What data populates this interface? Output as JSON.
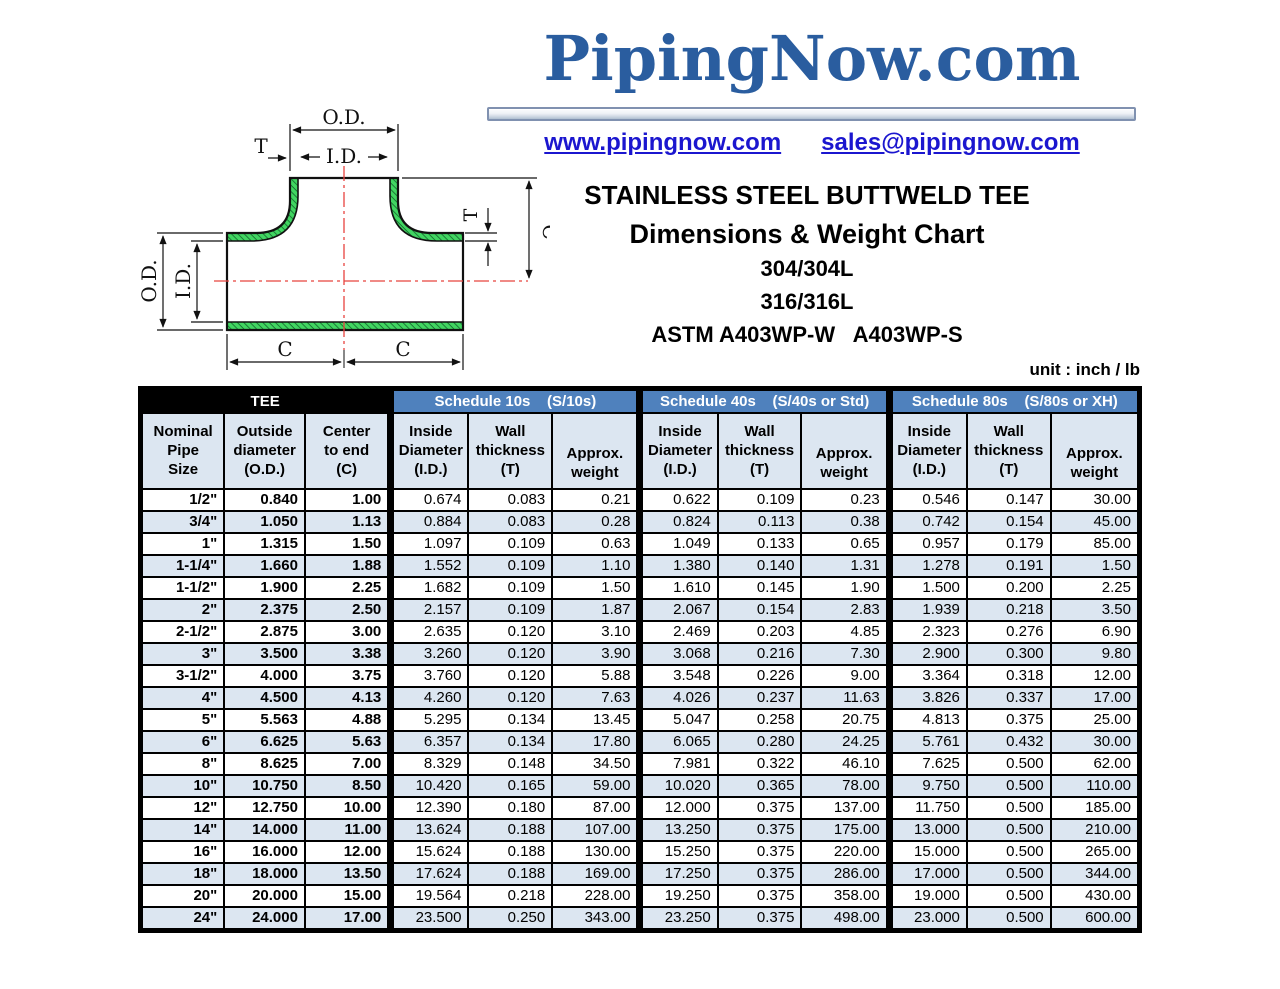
{
  "header": {
    "logo": "PipingNow.com",
    "website": "www.pipingnow.com",
    "email": "sales@pipingnow.com"
  },
  "titles": {
    "main": "STAINLESS STEEL BUTTWELD TEE",
    "sub": "Dimensions & Weight Chart",
    "grade1": "304/304L",
    "grade2": "316/316L",
    "astm": "ASTM A403WP-W   A403WP-S",
    "unit": "unit : inch / lb"
  },
  "diagram": {
    "od_label": "O.D.",
    "id_label": "I.D.",
    "t_label": "T",
    "c_label": "C"
  },
  "colors": {
    "schedule_header_bg": "#4f81bd",
    "shaded_row_bg": "#dce6f1",
    "logo_blue": "#2a5d9f",
    "link_blue": "#1b16cf",
    "hatch_green": "#41d561",
    "centerline_red": "#e8433f"
  },
  "table": {
    "groups": [
      {
        "label": "TEE"
      },
      {
        "label": "Schedule 10s    (S/10s)"
      },
      {
        "label": "Schedule 40s    (S/40s or Std)"
      },
      {
        "label": "Schedule 80s    (S/80s or XH)"
      }
    ],
    "columns": [
      "Nominal\nPipe\nSize",
      "Outside\ndiameter\n(O.D.)",
      "Center\nto end\n(C)",
      "Inside\nDiameter\n(I.D.)",
      "Wall\nthickness\n(T)",
      "Approx.\nweight",
      "Inside\nDiameter\n(I.D.)",
      "Wall\nthickness\n(T)",
      "Approx.\nweight",
      "Inside\nDiameter\n(I.D.)",
      "Wall\nthickness\n(T)",
      "Approx.\nweight"
    ],
    "rows": [
      [
        "1/2\"",
        "0.840",
        "1.00",
        "0.674",
        "0.083",
        "0.21",
        "0.622",
        "0.109",
        "0.23",
        "0.546",
        "0.147",
        "30.00"
      ],
      [
        "3/4\"",
        "1.050",
        "1.13",
        "0.884",
        "0.083",
        "0.28",
        "0.824",
        "0.113",
        "0.38",
        "0.742",
        "0.154",
        "45.00"
      ],
      [
        "1\"",
        "1.315",
        "1.50",
        "1.097",
        "0.109",
        "0.63",
        "1.049",
        "0.133",
        "0.65",
        "0.957",
        "0.179",
        "85.00"
      ],
      [
        "1-1/4\"",
        "1.660",
        "1.88",
        "1.552",
        "0.109",
        "1.10",
        "1.380",
        "0.140",
        "1.31",
        "1.278",
        "0.191",
        "1.50"
      ],
      [
        "1-1/2\"",
        "1.900",
        "2.25",
        "1.682",
        "0.109",
        "1.50",
        "1.610",
        "0.145",
        "1.90",
        "1.500",
        "0.200",
        "2.25"
      ],
      [
        "2\"",
        "2.375",
        "2.50",
        "2.157",
        "0.109",
        "1.87",
        "2.067",
        "0.154",
        "2.83",
        "1.939",
        "0.218",
        "3.50"
      ],
      [
        "2-1/2\"",
        "2.875",
        "3.00",
        "2.635",
        "0.120",
        "3.10",
        "2.469",
        "0.203",
        "4.85",
        "2.323",
        "0.276",
        "6.90"
      ],
      [
        "3\"",
        "3.500",
        "3.38",
        "3.260",
        "0.120",
        "3.90",
        "3.068",
        "0.216",
        "7.30",
        "2.900",
        "0.300",
        "9.80"
      ],
      [
        "3-1/2\"",
        "4.000",
        "3.75",
        "3.760",
        "0.120",
        "5.88",
        "3.548",
        "0.226",
        "9.00",
        "3.364",
        "0.318",
        "12.00"
      ],
      [
        "4\"",
        "4.500",
        "4.13",
        "4.260",
        "0.120",
        "7.63",
        "4.026",
        "0.237",
        "11.63",
        "3.826",
        "0.337",
        "17.00"
      ],
      [
        "5\"",
        "5.563",
        "4.88",
        "5.295",
        "0.134",
        "13.45",
        "5.047",
        "0.258",
        "20.75",
        "4.813",
        "0.375",
        "25.00"
      ],
      [
        "6\"",
        "6.625",
        "5.63",
        "6.357",
        "0.134",
        "17.80",
        "6.065",
        "0.280",
        "24.25",
        "5.761",
        "0.432",
        "30.00"
      ],
      [
        "8\"",
        "8.625",
        "7.00",
        "8.329",
        "0.148",
        "34.50",
        "7.981",
        "0.322",
        "46.10",
        "7.625",
        "0.500",
        "62.00"
      ],
      [
        "10\"",
        "10.750",
        "8.50",
        "10.420",
        "0.165",
        "59.00",
        "10.020",
        "0.365",
        "78.00",
        "9.750",
        "0.500",
        "110.00"
      ],
      [
        "12\"",
        "12.750",
        "10.00",
        "12.390",
        "0.180",
        "87.00",
        "12.000",
        "0.375",
        "137.00",
        "11.750",
        "0.500",
        "185.00"
      ],
      [
        "14\"",
        "14.000",
        "11.00",
        "13.624",
        "0.188",
        "107.00",
        "13.250",
        "0.375",
        "175.00",
        "13.000",
        "0.500",
        "210.00"
      ],
      [
        "16\"",
        "16.000",
        "12.00",
        "15.624",
        "0.188",
        "130.00",
        "15.250",
        "0.375",
        "220.00",
        "15.000",
        "0.500",
        "265.00"
      ],
      [
        "18\"",
        "18.000",
        "13.50",
        "17.624",
        "0.188",
        "169.00",
        "17.250",
        "0.375",
        "286.00",
        "17.000",
        "0.500",
        "344.00"
      ],
      [
        "20\"",
        "20.000",
        "15.00",
        "19.564",
        "0.218",
        "228.00",
        "19.250",
        "0.375",
        "358.00",
        "19.000",
        "0.500",
        "430.00"
      ],
      [
        "24\"",
        "24.000",
        "17.00",
        "23.500",
        "0.250",
        "343.00",
        "23.250",
        "0.375",
        "498.00",
        "23.000",
        "0.500",
        "600.00"
      ]
    ]
  }
}
